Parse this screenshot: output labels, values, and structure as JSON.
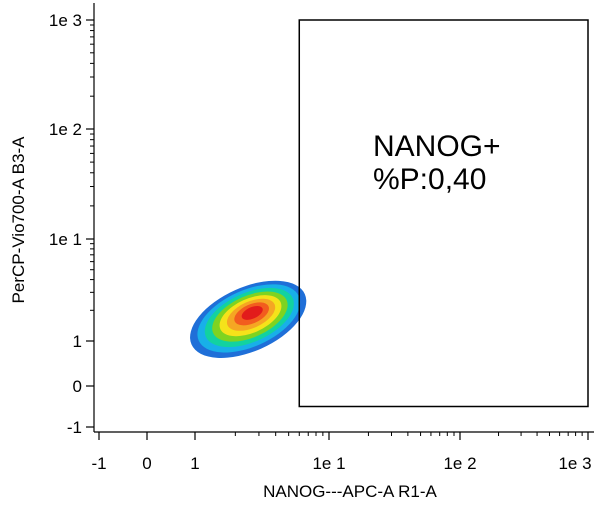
{
  "chart_data": {
    "type": "scatter",
    "subtype": "density-dot-plot",
    "xlabel": "NANOG---APC-A R1-A",
    "ylabel": "PerCP-Vio700-A B3-A",
    "scale": "biexponential",
    "x_ticks": [
      "-1",
      "0",
      "1",
      "1e 1",
      "1e 2",
      "1e 3"
    ],
    "y_ticks": [
      "1e 3",
      "1e 2",
      "1e 1",
      "1",
      "0",
      "-1"
    ],
    "population": {
      "center_x": 2.6,
      "center_y": 1.8,
      "density_colors": [
        "#1f6fd8",
        "#18b0e8",
        "#12d2a0",
        "#7ed321",
        "#f5e21a",
        "#f5a623",
        "#f25c1e",
        "#e21b1b"
      ]
    },
    "gate": {
      "name": "NANOG+",
      "stat_label": "%P:0,40",
      "x_min": 6,
      "x_max": 1000,
      "y_min": -0.5,
      "y_max": 1000
    },
    "grid": false,
    "legend": "none"
  }
}
